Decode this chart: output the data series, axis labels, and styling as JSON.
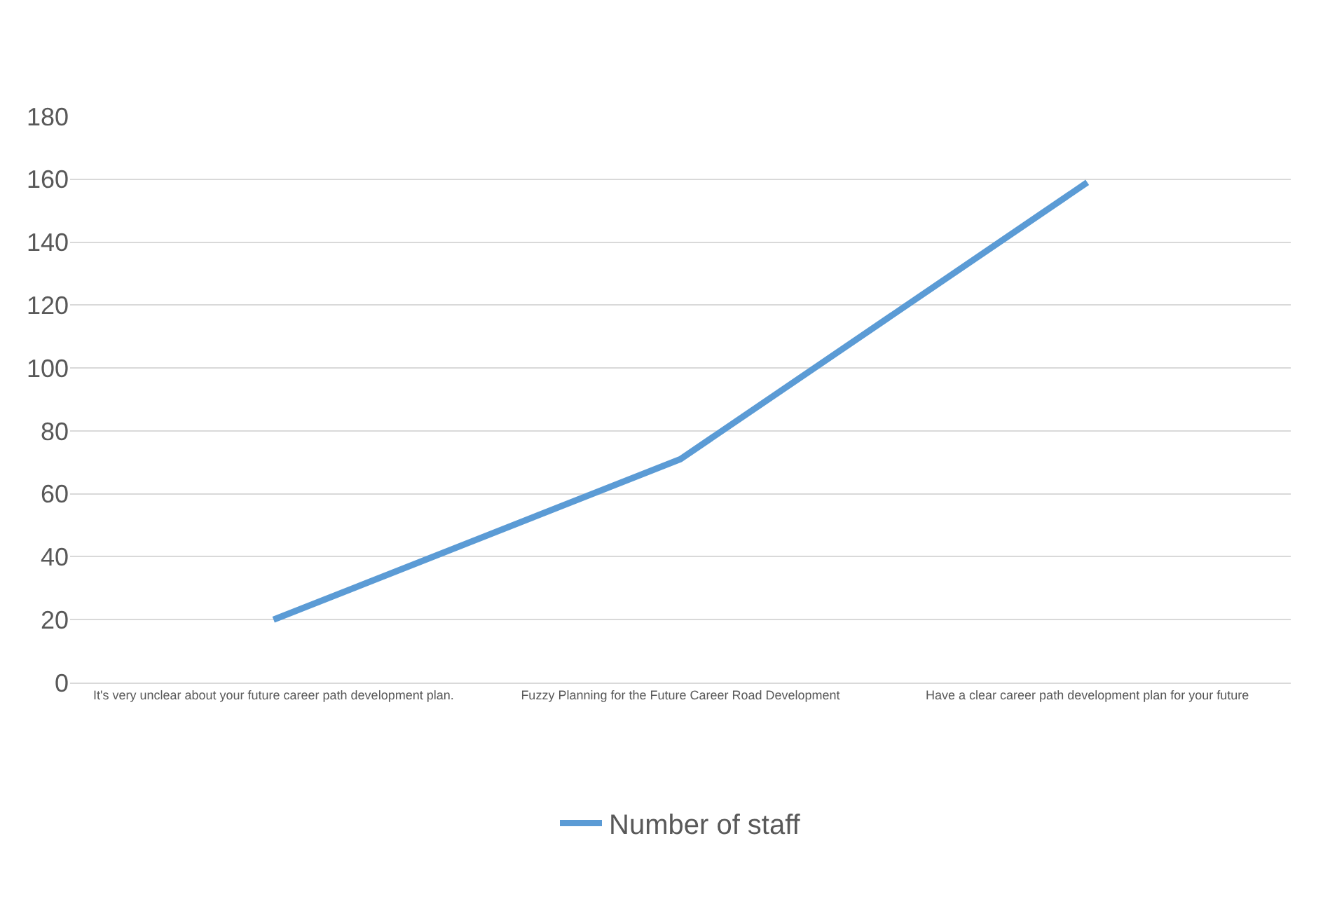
{
  "chart_data": {
    "type": "line",
    "categories": [
      "It's very unclear about your future career path development plan.",
      "Fuzzy Planning for the Future Career Road Development",
      "Have a clear career path development plan for your future"
    ],
    "series": [
      {
        "name": "Number of staff",
        "color": "#5b9bd5",
        "values": [
          20,
          71,
          159
        ]
      }
    ],
    "ylim": [
      0,
      180
    ],
    "yticks": [
      0,
      20,
      40,
      60,
      80,
      100,
      120,
      140,
      160,
      180
    ],
    "grid": "y",
    "legend": "bottom",
    "marker": "none",
    "line_style": "solid"
  }
}
